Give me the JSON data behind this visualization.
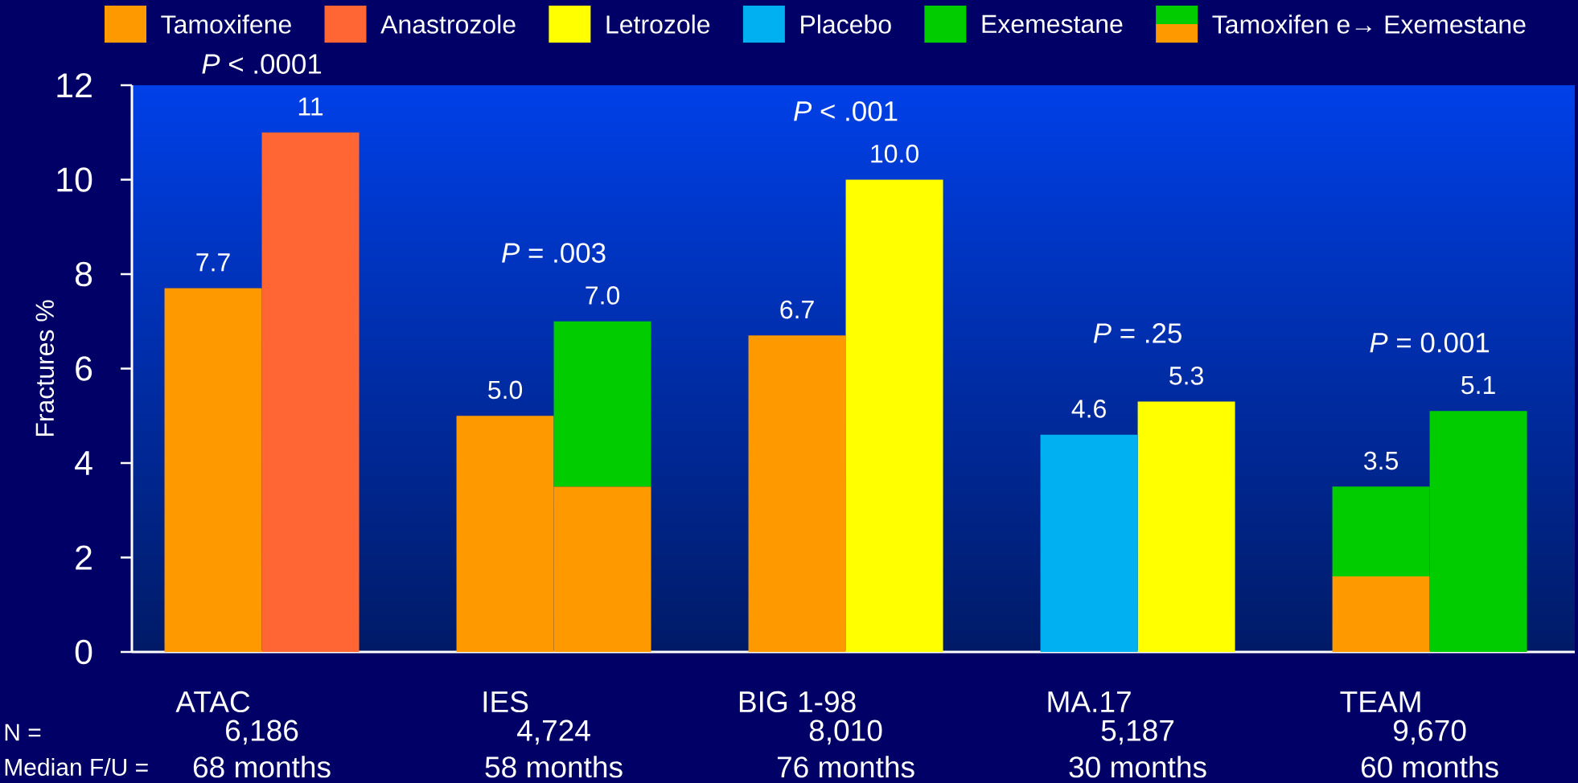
{
  "chart_data": {
    "type": "bar",
    "stacked": true,
    "legend": "top",
    "ylabel": "Fractures %",
    "categories": [
      "ATAC",
      null,
      null,
      "IES",
      null,
      null,
      "BIG 1-98",
      null,
      null,
      "MA.17",
      null,
      null,
      "TEAM",
      null
    ],
    "series": [
      {
        "name": "Tamoxifene",
        "color": "#ff9900",
        "values": [
          7.7,
          null,
          null,
          5.0,
          3.5,
          null,
          6.7,
          null,
          null,
          null,
          null,
          null,
          1.6,
          null
        ]
      },
      {
        "name": "Anastrozole",
        "color": "#ff6633",
        "values": [
          null,
          11,
          null,
          null,
          null,
          null,
          null,
          null,
          null,
          null,
          null,
          null,
          null,
          null
        ]
      },
      {
        "name": "Letrozole",
        "color": "#ffff00",
        "values": [
          null,
          null,
          null,
          null,
          null,
          null,
          null,
          10.0,
          null,
          null,
          5.3,
          null,
          null,
          null
        ]
      },
      {
        "name": "Placebo",
        "color": "#00b0f0",
        "values": [
          null,
          null,
          null,
          null,
          null,
          null,
          null,
          null,
          null,
          4.6,
          null,
          null,
          null,
          null
        ]
      },
      {
        "name": "Exemestane",
        "color": "#00cc00",
        "values": [
          null,
          null,
          null,
          null,
          3.5,
          null,
          null,
          null,
          null,
          null,
          null,
          null,
          1.9,
          5.1
        ]
      },
      {
        "name": "Tamoxifen e→ Exemestane",
        "color": "#00cc00",
        "values": [
          null,
          null,
          null,
          null,
          null,
          null,
          null,
          null,
          null,
          null,
          null,
          null,
          null,
          null
        ]
      }
    ],
    "totals": [
      "7.7",
      "11",
      null,
      "5.0",
      "7.0",
      null,
      "6.7",
      "10.0",
      null,
      "4.6",
      "5.3",
      null,
      "3.5",
      "5.1"
    ],
    "ylim": [
      0,
      12
    ],
    "yticks": [
      0,
      2,
      4,
      6,
      8,
      10,
      12
    ],
    "annotations": [
      "N =",
      "Median F/U =",
      "6,186",
      "4,724",
      "8,010",
      "5,187",
      "9,670",
      "68 months",
      "58 months",
      "76 months",
      "30 months",
      "60 months",
      "*P* < .0001",
      "*P* = .003",
      "*P* < .001",
      "*P* = .25",
      "*P* = 0.001"
    ]
  }
}
